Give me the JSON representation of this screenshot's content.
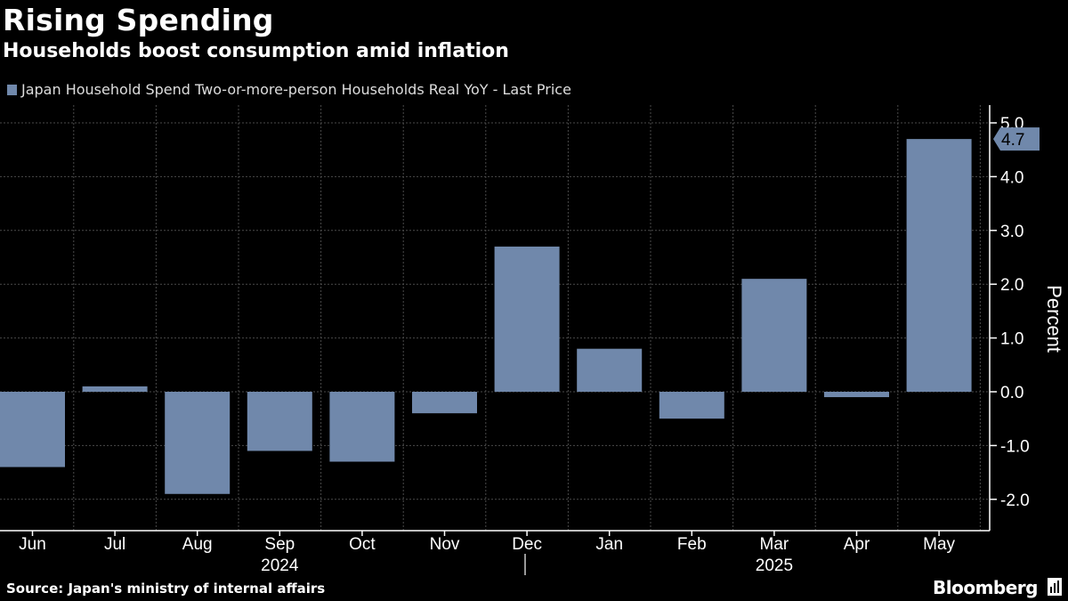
{
  "header": {
    "title": "Rising Spending",
    "subtitle": "Households boost consumption amid inflation",
    "legend_label": "Japan Household Spend Two-or-more-person Households Real YoY - Last Price"
  },
  "footer": {
    "source": "Source: Japan's ministry of internal affairs",
    "brand": "Bloomberg"
  },
  "colors": {
    "background": "#000000",
    "bar": "#7088ab",
    "grid": "#4a4a4a",
    "text": "#ffffff"
  },
  "chart_data": {
    "type": "bar",
    "title": "Rising Spending",
    "subtitle": "Households boost consumption amid inflation",
    "categories": [
      "Jun",
      "Jul",
      "Aug",
      "Sep",
      "Oct",
      "Nov",
      "Dec",
      "Jan",
      "Feb",
      "Mar",
      "Apr",
      "May"
    ],
    "year_labels": [
      {
        "label": "2024",
        "under": "Sep"
      },
      {
        "label": "2025",
        "under": "Mar"
      }
    ],
    "series": [
      {
        "name": "Japan Household Spend Two-or-more-person Households Real YoY - Last Price",
        "values": [
          -1.4,
          0.1,
          -1.9,
          -1.1,
          -1.3,
          -0.4,
          2.7,
          0.8,
          -0.5,
          2.1,
          -0.1,
          4.7
        ]
      }
    ],
    "ylabel": "Percent",
    "ylim": [
      -2.5,
      5.0
    ],
    "yticks": [
      5.0,
      4.0,
      3.0,
      2.0,
      1.0,
      0.0,
      -1.0,
      -2.0
    ],
    "ytick_labels": [
      "5.0",
      "4.0",
      "3.0",
      "2.0",
      "1.0",
      "0.0",
      "-1.0",
      "-2.0"
    ],
    "last_value_label": "4.7",
    "grid": true,
    "y_axis_position": "right"
  }
}
